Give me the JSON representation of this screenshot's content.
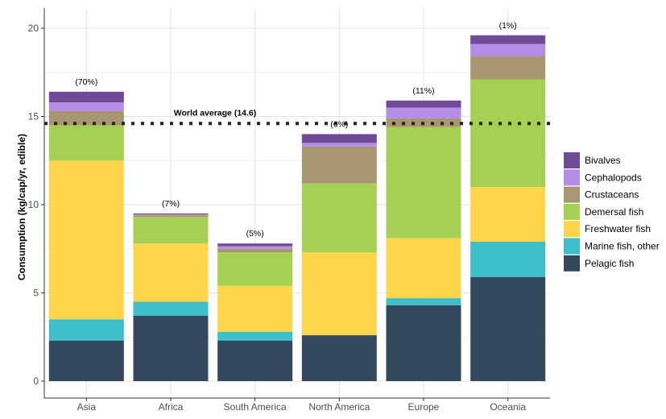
{
  "chart_data": {
    "type": "bar",
    "stacked": true,
    "ylabel": "Consumption (kg/cap/yr, edible)",
    "xlabel": "",
    "ylim": [
      0,
      20.8
    ],
    "yticks": [
      0,
      5,
      10,
      15,
      20
    ],
    "ytick_labels": [
      "0",
      "5",
      "10",
      "15",
      "20"
    ],
    "grid": true,
    "legend_position": "right",
    "categories": [
      "Asia",
      "Africa",
      "South America",
      "North America",
      "Europe",
      "Oceania"
    ],
    "share_labels": [
      "(70%)",
      "(7%)",
      "(5%)",
      "(6%)",
      "(11%)",
      "(1%)"
    ],
    "world_average": {
      "value": 14.6,
      "label": "World average (14.6)"
    },
    "series": [
      {
        "name": "Pelagic fish",
        "color": "#34495e",
        "values": [
          2.3,
          3.7,
          2.3,
          2.6,
          4.3,
          5.9
        ]
      },
      {
        "name": "Marine fish, other",
        "color": "#3cbfc9",
        "values": [
          1.2,
          0.8,
          0.5,
          0.0,
          0.4,
          2.0
        ]
      },
      {
        "name": "Freshwater fish",
        "color": "#fdd549",
        "values": [
          9.0,
          3.3,
          2.6,
          4.7,
          3.4,
          3.1
        ]
      },
      {
        "name": "Demersal fish",
        "color": "#a6d053",
        "values": [
          2.0,
          1.5,
          1.9,
          3.9,
          6.3,
          6.1
        ]
      },
      {
        "name": "Crustaceans",
        "color": "#a89670",
        "values": [
          0.8,
          0.1,
          0.2,
          2.1,
          0.5,
          1.3
        ]
      },
      {
        "name": "Cephalopods",
        "color": "#b38de8",
        "values": [
          0.5,
          0.05,
          0.15,
          0.2,
          0.6,
          0.7
        ]
      },
      {
        "name": "Bivalves",
        "color": "#704a97",
        "values": [
          0.6,
          0.05,
          0.15,
          0.5,
          0.4,
          0.5
        ]
      }
    ],
    "legend_order": [
      "Bivalves",
      "Cephalopods",
      "Crustaceans",
      "Demersal fish",
      "Freshwater fish",
      "Marine fish, other",
      "Pelagic fish"
    ]
  }
}
